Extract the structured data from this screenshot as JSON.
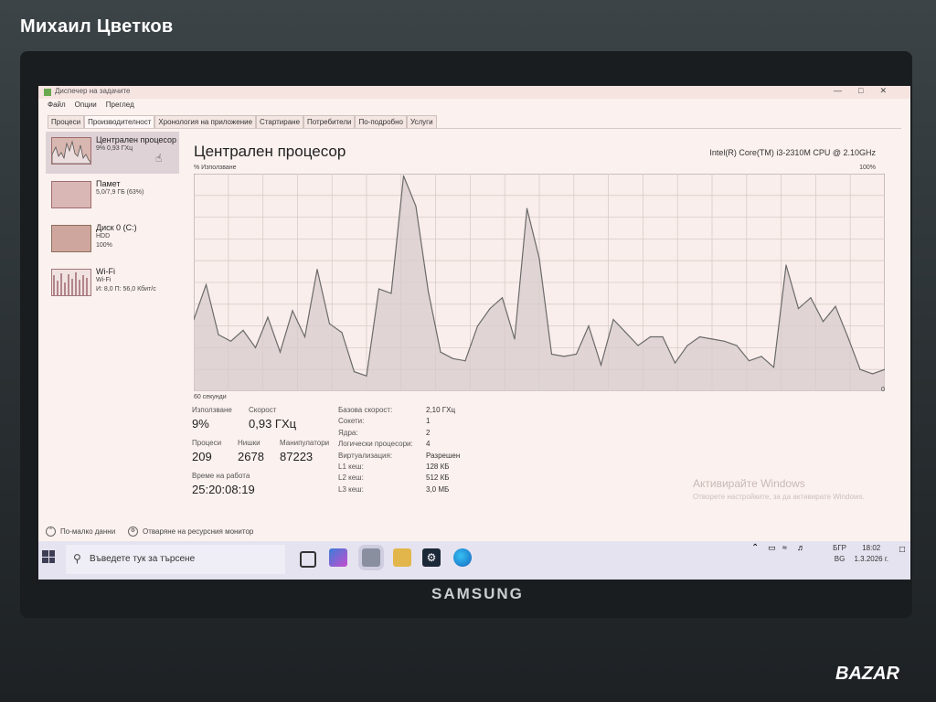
{
  "watermark_seller": "Михаил Цветков",
  "brand_logo": "SAMSUNG",
  "bazar_logo": "BAZAR",
  "window": {
    "title": "Диспечер на задачите",
    "menu": [
      "Файл",
      "Опции",
      "Преглед"
    ],
    "tabs": [
      "Процеси",
      "Производителност",
      "Хронология на приложение",
      "Стартиране",
      "Потребители",
      "По-подробно",
      "Услуги"
    ],
    "active_tab_index": 1
  },
  "sidebar": [
    {
      "name": "Централен процесор",
      "sub": "9% 0,93 ГХц"
    },
    {
      "name": "Памет",
      "sub": "5,0/7,9 ГБ (63%)"
    },
    {
      "name": "Диск 0 (C:)",
      "sub": "HDD",
      "sub2": "100%"
    },
    {
      "name": "Wi-Fi",
      "sub": "Wi-Fi",
      "sub2": "И: 8,0  П: 56,0 Кбит/с"
    }
  ],
  "main": {
    "title": "Централен процесор",
    "cpu_model": "Intel(R) Core(TM) i3-2310M CPU @ 2.10GHz",
    "y_label": "% Използване",
    "y_max": "100%",
    "x_label_left": "60 секунди",
    "x_label_right": "0"
  },
  "chart_data": {
    "type": "area",
    "title": "",
    "xlabel": "60 секунди",
    "ylabel": "% Използване",
    "ylim": [
      0,
      100
    ],
    "x_range": [
      60,
      0
    ],
    "grid": true,
    "values": [
      33,
      49,
      26,
      23,
      28,
      20,
      34,
      18,
      37,
      25,
      56,
      31,
      27,
      9,
      7,
      47,
      45,
      99,
      85,
      46,
      18,
      15,
      14,
      30,
      38,
      43,
      24,
      84,
      61,
      17,
      16,
      17,
      30,
      12,
      33,
      27,
      21,
      25,
      25,
      13,
      21,
      25,
      24,
      23,
      21,
      14,
      16,
      11,
      58,
      38,
      43,
      32,
      39,
      25,
      10,
      8,
      10
    ]
  },
  "stats": {
    "util_label": "Използване",
    "util_value": "9%",
    "speed_label": "Скорост",
    "speed_value": "0,93 ГХц",
    "proc_label": "Процеси",
    "proc_value": "209",
    "threads_label": "Нишки",
    "threads_value": "2678",
    "handles_label": "Манипулатори",
    "handles_value": "87223",
    "uptime_label": "Време на работа",
    "uptime_value": "25:20:08:19"
  },
  "specs": [
    {
      "k": "Базова скорост:",
      "v": "2,10 ГХц"
    },
    {
      "k": "Сокети:",
      "v": "1"
    },
    {
      "k": "Ядра:",
      "v": "2"
    },
    {
      "k": "Логически процесори:",
      "v": "4"
    },
    {
      "k": "Виртуализация:",
      "v": "Разрешен"
    },
    {
      "k": "L1 кеш:",
      "v": "128 КБ"
    },
    {
      "k": "L2 кеш:",
      "v": "512 КБ"
    },
    {
      "k": "L3 кеш:",
      "v": "3,0 МБ"
    }
  ],
  "activation": {
    "title": "Активирайте Windows",
    "sub": "Отворете настройките, за да активирате Windows."
  },
  "footer": {
    "fewer_details": "По-малко данни",
    "resource_monitor": "Отваряне на ресурсния монитор"
  },
  "taskbar": {
    "search_placeholder": "Въведете тук за търсене",
    "lang_top": "БГР",
    "lang_bottom": "BG",
    "time": "18:02",
    "date": "1.3.2026 г."
  },
  "colors": {
    "accent": "#9d6f6f",
    "graph_line": "#6a6a6a",
    "graph_fill": "#d7cccc",
    "screen_bg": "#fbf1ee"
  }
}
